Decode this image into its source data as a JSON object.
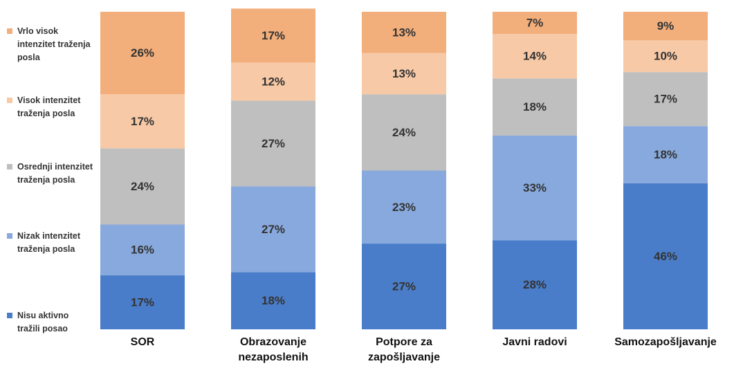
{
  "chart_data": {
    "type": "stacked_bar",
    "categories": [
      "SOR",
      "Obrazovanje nezaposlenih",
      "Potpore za zapošljavanje",
      "Javni radovi",
      "Samozapošljavanje"
    ],
    "series": [
      {
        "name": "Nisu aktivno tražili posao",
        "color": "#4a7dc9",
        "values": [
          17,
          18,
          27,
          28,
          46
        ],
        "value_labels": [
          "17%",
          "18%",
          "27%",
          "28%",
          "46%"
        ]
      },
      {
        "name": "Nizak intenzitet traženja posla",
        "color": "#87a9dd",
        "values": [
          16,
          27,
          23,
          33,
          18
        ],
        "value_labels": [
          "16%",
          "27%",
          "23%",
          "33%",
          "18%"
        ]
      },
      {
        "name": "Osrednji intenzitet traženja posla",
        "color": "#bfbfbf",
        "values": [
          24,
          27,
          24,
          18,
          17
        ],
        "value_labels": [
          "24%",
          "27%",
          "24%",
          "18%",
          "17%"
        ]
      },
      {
        "name": "Visok intenzitet traženja posla",
        "color": "#f7c9a6",
        "values": [
          17,
          12,
          13,
          14,
          10
        ],
        "value_labels": [
          "17%",
          "12%",
          "13%",
          "14%",
          "10%"
        ]
      },
      {
        "name": "Vrlo visok intenzitet traženja posla",
        "color": "#f2ae7b",
        "values": [
          26,
          17,
          13,
          7,
          9
        ],
        "value_labels": [
          "26%",
          "17%",
          "13%",
          "7%",
          "9%"
        ]
      }
    ],
    "ylim": [
      0,
      100
    ],
    "legend": "left"
  }
}
